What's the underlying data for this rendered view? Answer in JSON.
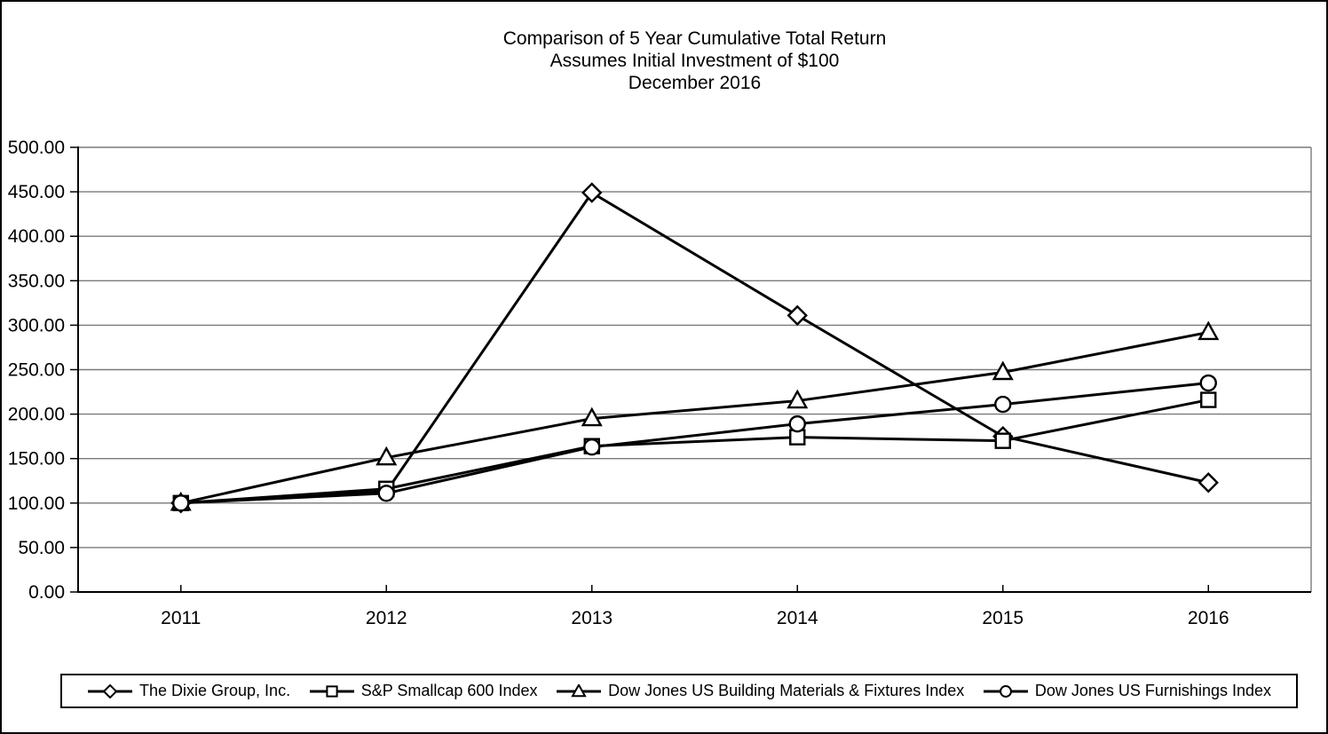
{
  "window": {
    "background": "#ffffff",
    "border_color": "#000000"
  },
  "title": {
    "line1": "Comparison of 5 Year Cumulative Total Return",
    "line2": "Assumes Initial Investment of $100",
    "line3": "December 2016"
  },
  "chart_data": {
    "type": "line",
    "categories": [
      "2011",
      "2012",
      "2013",
      "2014",
      "2015",
      "2016"
    ],
    "series": [
      {
        "name": "The Dixie Group, Inc.",
        "marker": "diamond",
        "values": [
          100,
          113,
          449,
          311,
          175,
          123
        ]
      },
      {
        "name": "S&P Smallcap 600 Index",
        "marker": "square",
        "values": [
          100,
          116,
          164,
          174,
          170,
          216
        ]
      },
      {
        "name": "Dow Jones US Building Materials & Fixtures Index",
        "marker": "triangle",
        "values": [
          100,
          151,
          195,
          215,
          247,
          292
        ]
      },
      {
        "name": "Dow Jones US Furnishings Index",
        "marker": "circle",
        "values": [
          100,
          111,
          163,
          189,
          211,
          235
        ]
      }
    ],
    "xlabel": "",
    "ylabel": "",
    "ylim": [
      0,
      500
    ],
    "ytick_step": 50,
    "ytick_labels": [
      "0.00",
      "50.00",
      "100.00",
      "150.00",
      "200.00",
      "250.00",
      "300.00",
      "350.00",
      "400.00",
      "450.00",
      "500.00"
    ],
    "grid": true,
    "legend_position": "bottom",
    "line_color": "#000000",
    "marker_fill": "#ffffff",
    "gridline_color": "#7a7a7a"
  }
}
